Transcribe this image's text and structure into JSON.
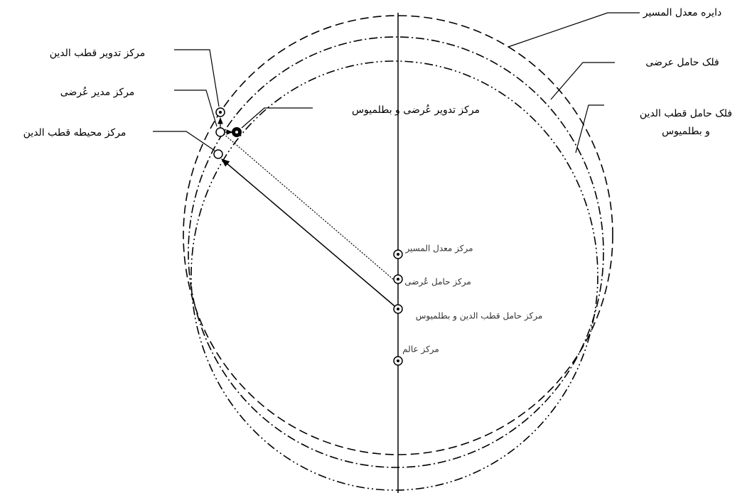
{
  "labels": {
    "equant_circle": "دایره معدل المسیر",
    "latitude_deferent": "فلک حامل عرضی",
    "qutb_deferent_1": "فلک حامل قطب الدین",
    "qutb_deferent_2": "و بطلمیوس",
    "qutb_epicycle_center": "مرکز تدویر قطب الدین",
    "latitude_director_center": "مرکز مدیر عُرضی",
    "qutb_encompassing_center": "مرکز محیطه قطب الدین",
    "latitude_ptolemy_epicycle_center": "مرکز تدویر عُرضی و بطلمیوس",
    "equant_center": "مرکز معدل المسیر",
    "latitude_deferent_center": "مرکز حامل عُرضی",
    "qutb_ptolemy_deferent_center": "مرکز حامل قطب الدین و بطلمیوس",
    "world_center": "مرکز عالم"
  }
}
